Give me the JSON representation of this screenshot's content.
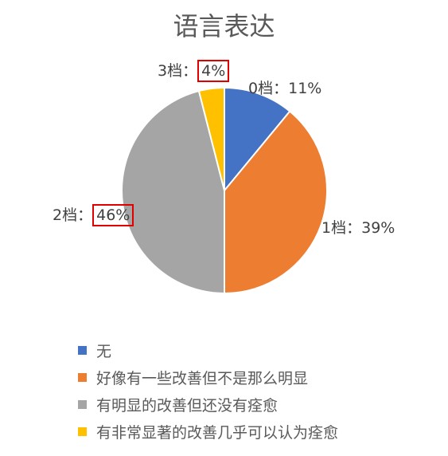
{
  "chart_data": {
    "type": "pie",
    "title": "语言表达",
    "slices": [
      {
        "name": "无",
        "short": "0档",
        "value": 11,
        "label": "11%",
        "color": "#4472C4"
      },
      {
        "name": "好像有一些改善但不是那么明显",
        "short": "1档",
        "value": 39,
        "label": "39%",
        "color": "#ED7D31"
      },
      {
        "name": "有明显的改善但还没有痊愈",
        "short": "2档",
        "value": 46,
        "label": "46%",
        "color": "#A5A5A5"
      },
      {
        "name": "有非常显著的改善几乎可以认为痊愈",
        "short": "3档",
        "value": 4,
        "label": "4%",
        "color": "#FFC000"
      }
    ],
    "label_separator": "：",
    "legend_position": "bottom"
  }
}
